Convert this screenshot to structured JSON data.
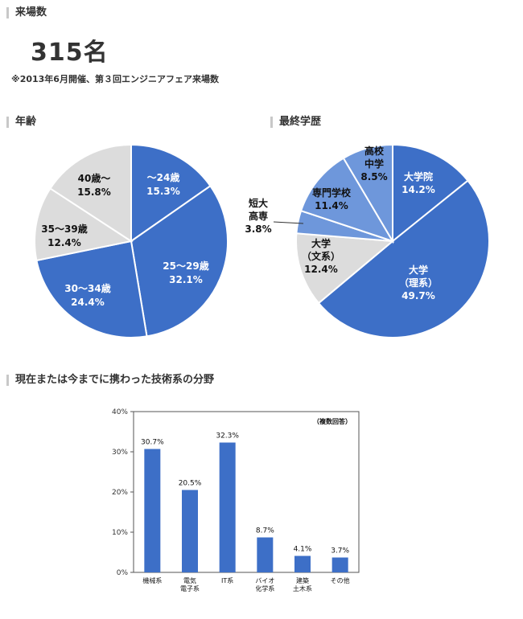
{
  "sections": {
    "attendance_title": "来場数",
    "attendance_count": "315名",
    "attendance_note": "※2013年6月開催、第３回エンジニアフェア来場数",
    "age_title": "年齢",
    "education_title": "最終学歴",
    "tech_title": "現在または今までに携わった技術系の分野"
  },
  "chart_data": [
    {
      "type": "pie",
      "title": "年齢",
      "slices": [
        {
          "label": "～24歳",
          "value": 15.3,
          "value_text": "15.3%",
          "color": "#3d6fc7"
        },
        {
          "label": "25～29歳",
          "value": 32.1,
          "value_text": "32.1%",
          "color": "#3d6fc7"
        },
        {
          "label": "30～34歳",
          "value": 24.4,
          "value_text": "24.4%",
          "color": "#3d6fc7"
        },
        {
          "label": "35～39歳",
          "value": 12.4,
          "value_text": "12.4%",
          "color": "#dcdcdc"
        },
        {
          "label": "40歳～",
          "value": 15.8,
          "value_text": "15.8%",
          "color": "#dcdcdc"
        }
      ]
    },
    {
      "type": "pie",
      "title": "最終学歴",
      "slices": [
        {
          "label": "大学院",
          "value": 14.2,
          "value_text": "14.2%",
          "color": "#3d6fc7"
        },
        {
          "label": "大学（理系）",
          "label_lines": [
            "大学",
            "（理系）"
          ],
          "value": 49.7,
          "value_text": "49.7%",
          "color": "#3d6fc7"
        },
        {
          "label": "大学（文系）",
          "label_lines": [
            "大学",
            "（文系）"
          ],
          "value": 12.4,
          "value_text": "12.4%",
          "color": "#dcdcdc"
        },
        {
          "label": "短大高専",
          "label_lines": [
            "短大",
            "高専"
          ],
          "value": 3.8,
          "value_text": "3.8%",
          "color": "#6e97db"
        },
        {
          "label": "専門学校",
          "value": 11.4,
          "value_text": "11.4%",
          "color": "#6e97db"
        },
        {
          "label": "高校中学",
          "label_lines": [
            "高校",
            "中学"
          ],
          "value": 8.5,
          "value_text": "8.5%",
          "color": "#6e97db"
        }
      ]
    },
    {
      "type": "bar",
      "title": "現在または今までに携わった技術系の分野",
      "annotation": "（複数回答）",
      "categories": [
        "機械系",
        "電気電子系",
        "IT系",
        "バイオ化学系",
        "建築土木系",
        "その他"
      ],
      "category_lines": [
        [
          "機械系"
        ],
        [
          "電気",
          "電子系"
        ],
        [
          "IT系"
        ],
        [
          "バイオ",
          "化学系"
        ],
        [
          "建築",
          "土木系"
        ],
        [
          "その他"
        ]
      ],
      "values": [
        30.7,
        20.5,
        32.3,
        8.7,
        4.1,
        3.7
      ],
      "value_labels": [
        "30.7%",
        "20.5%",
        "32.3%",
        "8.7%",
        "4.1%",
        "3.7%"
      ],
      "ylim": [
        0,
        40
      ],
      "yticks": [
        0,
        10,
        20,
        30,
        40
      ],
      "ytick_labels": [
        "0%",
        "10%",
        "20%",
        "30%",
        "40%"
      ],
      "bar_color": "#3d6fc7",
      "grid": false
    }
  ]
}
